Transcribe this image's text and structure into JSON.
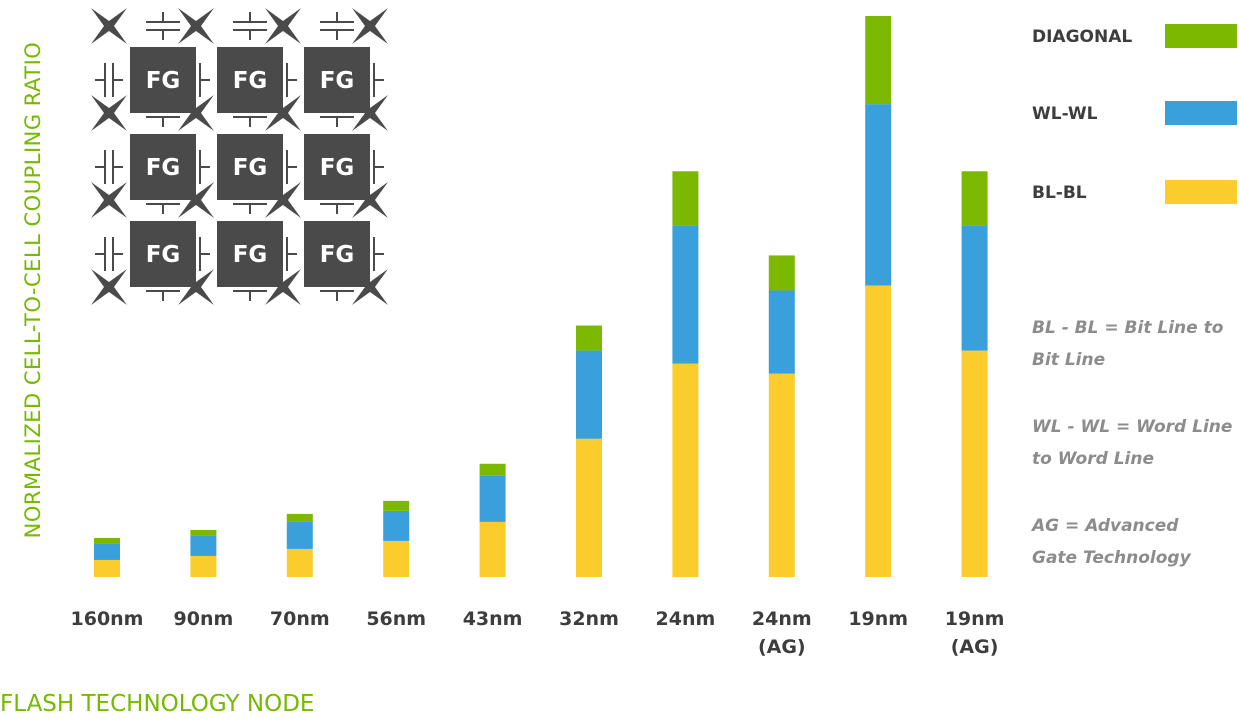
{
  "colors": {
    "bl_bl": "#fbcd2c",
    "wl_wl": "#3aa0dc",
    "diagonal": "#7cb800",
    "axis_text": "#76b900",
    "tick_text": "#3d3d3d",
    "note_text": "#8c8c8c",
    "cell": "#4a4a4a"
  },
  "inset": {
    "cell_label": "FG",
    "rows": 3,
    "cols": 3
  },
  "legend": [
    {
      "key": "diagonal",
      "label": "DIAGONAL"
    },
    {
      "key": "wl_wl",
      "label": "WL-WL"
    },
    {
      "key": "bl_bl",
      "label": "BL-BL"
    }
  ],
  "notes": [
    [
      "BL - BL = Bit Line to",
      "Bit Line"
    ],
    [
      "WL - WL = Word Line",
      "to Word Line"
    ],
    [
      "AG = Advanced",
      "Gate Technology"
    ]
  ],
  "chart_data": {
    "type": "bar",
    "stacked": true,
    "ylabel": "NORMALIZED CELL-TO-CELL COUPLING RATIO",
    "xlabel": "FLASH TECHNOLOGY NODE",
    "ylim": [
      0,
      560
    ],
    "categories": [
      [
        "160nm"
      ],
      [
        "90nm"
      ],
      [
        "70nm"
      ],
      [
        "56nm"
      ],
      [
        "43nm"
      ],
      [
        "32nm"
      ],
      [
        "24nm"
      ],
      [
        "24nm",
        "(AG)"
      ],
      [
        "19nm"
      ],
      [
        "19nm",
        "(AG)"
      ]
    ],
    "series": [
      {
        "name": "BL-BL",
        "key": "bl_bl",
        "values": [
          17,
          21,
          28,
          36,
          55,
          138,
          213,
          203,
          291,
          226
        ]
      },
      {
        "name": "WL-WL",
        "key": "wl_wl",
        "values": [
          16,
          20,
          27,
          30,
          46,
          88,
          138,
          83,
          181,
          125
        ]
      },
      {
        "name": "DIAGONAL",
        "key": "diagonal",
        "values": [
          6,
          6,
          8,
          10,
          12,
          25,
          54,
          35,
          88,
          54
        ]
      }
    ],
    "grid": false,
    "legend_position": "right"
  }
}
